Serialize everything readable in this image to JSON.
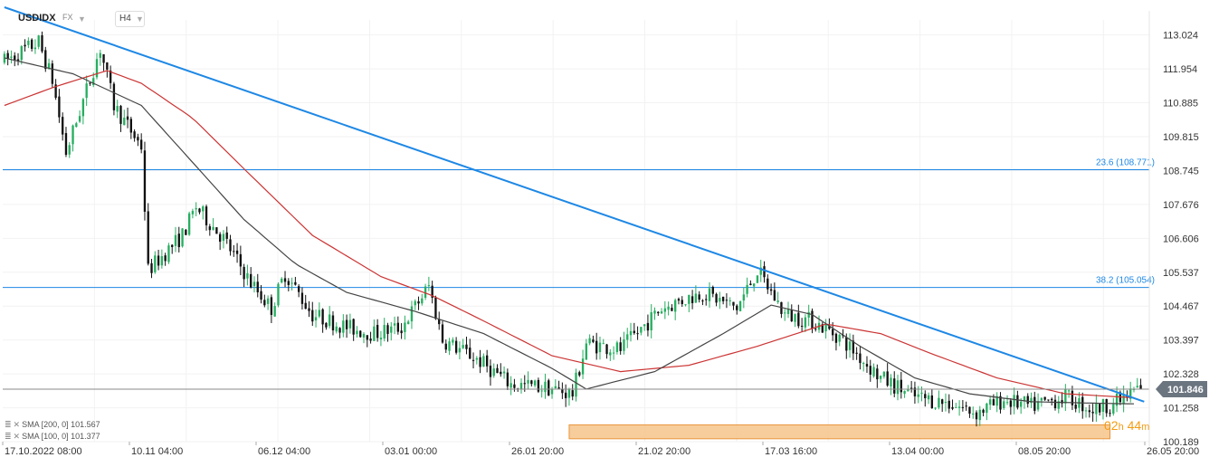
{
  "header": {
    "symbol": "USDIDX",
    "market": "FX",
    "timeframe": "H4"
  },
  "legend": [
    {
      "label": "SMA [200, 0] 101.567",
      "color": "#cc3333"
    },
    {
      "label": "SMA [100, 0] 101.377",
      "color": "#444444"
    }
  ],
  "countdown": {
    "hours": "02",
    "h_unit": "h",
    "minutes": "44",
    "m_unit": "m"
  },
  "chart_data": {
    "type": "candlestick",
    "ylim": [
      100.189,
      113.5
    ],
    "y_ticks": [
      113.024,
      111.954,
      110.885,
      109.815,
      108.745,
      107.676,
      106.606,
      105.537,
      104.467,
      103.397,
      102.328,
      101.258,
      100.189
    ],
    "x_ticks": [
      "17.10.2022 08:00",
      "10.11 04:00",
      "06.12 04:00",
      "03.01 00:00",
      "26.01 20:00",
      "21.02 20:00",
      "17.03 16:00",
      "13.04 00:00",
      "08.05 20:00",
      "26.05 20:00"
    ],
    "current_price": 101.846,
    "fib_levels": [
      {
        "label": "23.6 (108.771)",
        "value": 108.771
      },
      {
        "label": "38.2 (105.054)",
        "value": 105.054
      }
    ],
    "trendline": {
      "from": {
        "candle": 0,
        "price": 113.9
      },
      "to": {
        "candle": 333,
        "price": 101.45
      },
      "color": "#1e88e5"
    },
    "support_zone": {
      "from_candle": 165,
      "to_candle": 323,
      "low": 100.28,
      "high": 100.72
    },
    "colors": {
      "up": "#27ae60",
      "down": "#111111",
      "sma200": "#cc3333",
      "sma100": "#444444",
      "fib": "#1e88e5"
    },
    "price_path": [
      [
        0,
        112.2
      ],
      [
        10,
        112.8
      ],
      [
        14,
        111.6
      ],
      [
        18,
        109.3
      ],
      [
        28,
        112.6
      ],
      [
        32,
        110.8
      ],
      [
        40,
        109.5
      ],
      [
        42,
        105.6
      ],
      [
        52,
        106.7
      ],
      [
        56,
        107.6
      ],
      [
        64,
        106.6
      ],
      [
        72,
        105.2
      ],
      [
        78,
        104.4
      ],
      [
        82,
        105.5
      ],
      [
        90,
        104.2
      ],
      [
        100,
        103.8
      ],
      [
        108,
        103.6
      ],
      [
        116,
        103.8
      ],
      [
        124,
        105.1
      ],
      [
        128,
        103.4
      ],
      [
        138,
        102.8
      ],
      [
        148,
        102.0
      ],
      [
        158,
        101.9
      ],
      [
        166,
        101.7
      ],
      [
        170,
        103.3
      ],
      [
        180,
        103.1
      ],
      [
        192,
        104.4
      ],
      [
        204,
        104.9
      ],
      [
        214,
        104.4
      ],
      [
        220,
        105.6
      ],
      [
        228,
        104.2
      ],
      [
        236,
        104.0
      ],
      [
        244,
        103.5
      ],
      [
        256,
        102.2
      ],
      [
        266,
        101.6
      ],
      [
        276,
        101.4
      ],
      [
        284,
        101.1
      ],
      [
        292,
        101.5
      ],
      [
        300,
        101.3
      ],
      [
        310,
        101.6
      ],
      [
        318,
        101.2
      ],
      [
        324,
        101.4
      ],
      [
        328,
        101.6
      ],
      [
        331,
        101.9
      ]
    ],
    "sma100_path": [
      [
        0,
        112.3
      ],
      [
        20,
        111.8
      ],
      [
        40,
        110.8
      ],
      [
        55,
        109.0
      ],
      [
        70,
        107.2
      ],
      [
        85,
        105.8
      ],
      [
        100,
        104.9
      ],
      [
        120,
        104.3
      ],
      [
        140,
        103.6
      ],
      [
        160,
        102.5
      ],
      [
        170,
        101.85
      ],
      [
        190,
        102.4
      ],
      [
        210,
        103.6
      ],
      [
        224,
        104.5
      ],
      [
        236,
        104.2
      ],
      [
        250,
        103.2
      ],
      [
        266,
        102.2
      ],
      [
        282,
        101.7
      ],
      [
        300,
        101.45
      ],
      [
        320,
        101.4
      ],
      [
        331,
        101.38
      ]
    ],
    "sma200_path": [
      [
        0,
        110.8
      ],
      [
        15,
        111.4
      ],
      [
        30,
        111.9
      ],
      [
        40,
        111.5
      ],
      [
        55,
        110.4
      ],
      [
        70,
        108.8
      ],
      [
        90,
        106.7
      ],
      [
        110,
        105.4
      ],
      [
        125,
        104.8
      ],
      [
        140,
        104.0
      ],
      [
        160,
        102.9
      ],
      [
        180,
        102.4
      ],
      [
        200,
        102.6
      ],
      [
        220,
        103.2
      ],
      [
        240,
        103.9
      ],
      [
        256,
        103.6
      ],
      [
        270,
        103.0
      ],
      [
        290,
        102.2
      ],
      [
        310,
        101.7
      ],
      [
        331,
        101.57
      ]
    ]
  }
}
